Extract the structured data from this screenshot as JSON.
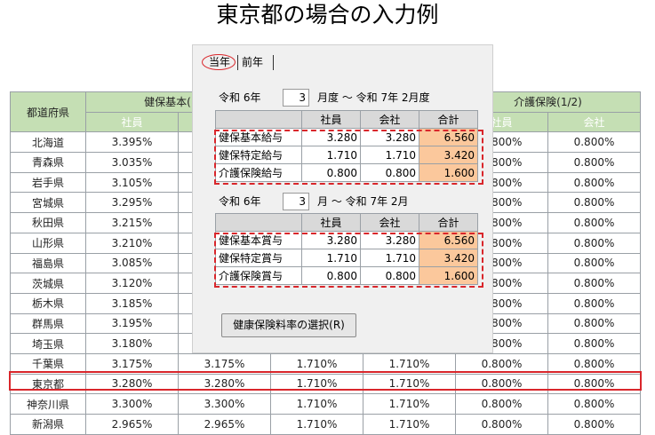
{
  "title": "東京都の場合の入力例",
  "table": {
    "group_headers": [
      "都道府県",
      "健保基本(1/2)",
      "介護保険(1/2)"
    ],
    "sub_headers": [
      "社員",
      "会社"
    ],
    "rows": [
      {
        "pref": "北海道",
        "v": [
          "3.395%",
          "",
          "",
          "",
          "0.800%",
          "0.800%"
        ]
      },
      {
        "pref": "青森県",
        "v": [
          "3.035%",
          "",
          "",
          "",
          "0.800%",
          "0.800%"
        ]
      },
      {
        "pref": "岩手県",
        "v": [
          "3.105%",
          "",
          "",
          "",
          "0.800%",
          "0.800%"
        ]
      },
      {
        "pref": "宮城県",
        "v": [
          "3.295%",
          "",
          "",
          "",
          "0.800%",
          "0.800%"
        ]
      },
      {
        "pref": "秋田県",
        "v": [
          "3.215%",
          "",
          "",
          "",
          "0.800%",
          "0.800%"
        ]
      },
      {
        "pref": "山形県",
        "v": [
          "3.210%",
          "",
          "",
          "",
          "0.800%",
          "0.800%"
        ]
      },
      {
        "pref": "福島県",
        "v": [
          "3.085%",
          "",
          "",
          "",
          "0.800%",
          "0.800%"
        ]
      },
      {
        "pref": "茨城県",
        "v": [
          "3.120%",
          "",
          "",
          "",
          "0.800%",
          "0.800%"
        ]
      },
      {
        "pref": "栃木県",
        "v": [
          "3.185%",
          "",
          "",
          "",
          "0.800%",
          "0.800%"
        ]
      },
      {
        "pref": "群馬県",
        "v": [
          "3.195%",
          "",
          "",
          "",
          "0.800%",
          "0.800%"
        ]
      },
      {
        "pref": "埼玉県",
        "v": [
          "3.180%",
          "",
          "",
          "",
          "0.800%",
          "0.800%"
        ]
      },
      {
        "pref": "千葉県",
        "v": [
          "3.175%",
          "3.175%",
          "1.710%",
          "1.710%",
          "0.800%",
          "0.800%"
        ]
      },
      {
        "pref": "東京都",
        "v": [
          "3.280%",
          "3.280%",
          "1.710%",
          "1.710%",
          "0.800%",
          "0.800%"
        ]
      },
      {
        "pref": "神奈川県",
        "v": [
          "3.300%",
          "3.300%",
          "1.710%",
          "1.710%",
          "0.800%",
          "0.800%"
        ]
      },
      {
        "pref": "新潟県",
        "v": [
          "2.965%",
          "2.965%",
          "1.710%",
          "1.710%",
          "0.800%",
          "0.800%"
        ]
      }
    ]
  },
  "dialog": {
    "tabs": [
      "当年",
      "前年"
    ],
    "salary": {
      "from_era": "令和 6年",
      "from_month": "3",
      "range_text": "月度 ～ 令和 7年  2月度",
      "headers": [
        "",
        "社員",
        "会社",
        "合計"
      ],
      "rows": [
        {
          "label": "健保基本給与",
          "emp": "3.280",
          "co": "3.280",
          "total": "6.560"
        },
        {
          "label": "健保特定給与",
          "emp": "1.710",
          "co": "1.710",
          "total": "3.420"
        },
        {
          "label": "介護保険給与",
          "emp": "0.800",
          "co": "0.800",
          "total": "1.600"
        }
      ]
    },
    "bonus": {
      "from_era": "令和 6年",
      "from_month": "3",
      "range_text": "月 ～ 令和 7年  2月",
      "headers": [
        "",
        "社員",
        "会社",
        "合計"
      ],
      "rows": [
        {
          "label": "健保基本賞与",
          "emp": "3.280",
          "co": "3.280",
          "total": "6.560"
        },
        {
          "label": "健保特定賞与",
          "emp": "1.710",
          "co": "1.710",
          "total": "3.420"
        },
        {
          "label": "介護保険賞与",
          "emp": "0.800",
          "co": "0.800",
          "total": "1.600"
        }
      ]
    },
    "button_label": "健康保険料率の選択(R)"
  },
  "colors": {
    "header_green": "#c5dfb4",
    "total_orange": "#fbc89c",
    "highlight_red": "#d9262b"
  }
}
